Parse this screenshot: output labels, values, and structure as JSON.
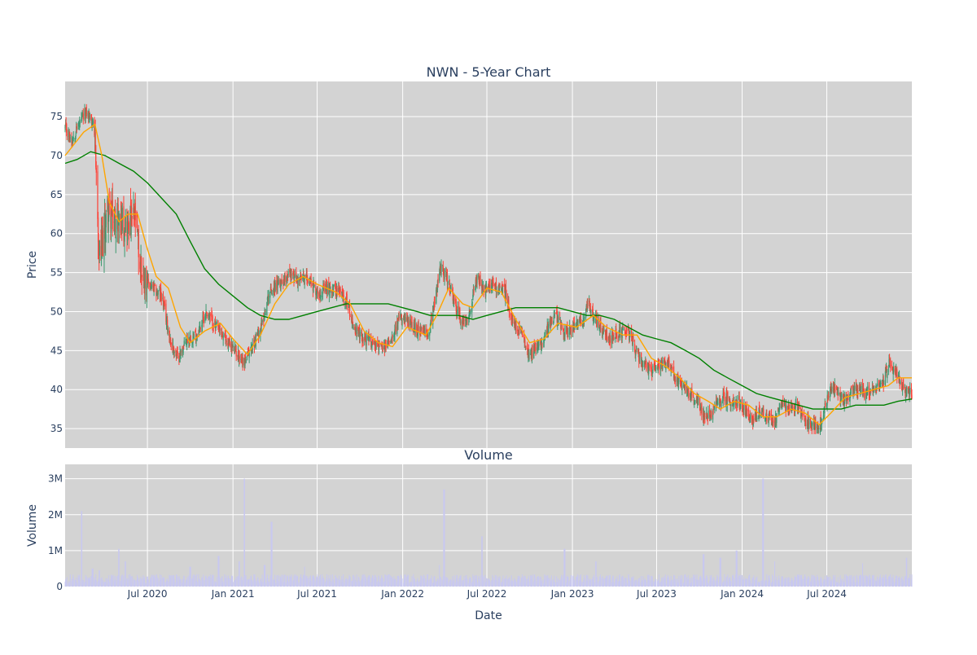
{
  "chart_data": [
    {
      "type": "candlestick",
      "title": "NWN - 5-Year Chart",
      "xlabel": "",
      "ylabel": "Price",
      "ylim": [
        32.5,
        79.5
      ],
      "yticks": [
        35,
        40,
        45,
        50,
        55,
        60,
        65,
        70,
        75
      ],
      "x_range": [
        "2020-01-06",
        "2024-12-31"
      ],
      "xticks": [
        "2020-07-01",
        "2021-01-01",
        "2021-07-01",
        "2022-01-01",
        "2022-07-01",
        "2023-01-01",
        "2023-07-01",
        "2024-01-01",
        "2024-07-01"
      ],
      "grid": true,
      "up_color": "#3D9970",
      "down_color": "#FF4136",
      "close_anchors": [
        [
          "2020-01-06",
          73.5
        ],
        [
          "2020-01-20",
          72.0
        ],
        [
          "2020-02-05",
          74.0
        ],
        [
          "2020-02-20",
          75.5
        ],
        [
          "2020-03-05",
          74.5
        ],
        [
          "2020-03-12",
          70.0
        ],
        [
          "2020-03-18",
          57.0
        ],
        [
          "2020-03-25",
          58.0
        ],
        [
          "2020-04-06",
          63.0
        ],
        [
          "2020-04-20",
          61.5
        ],
        [
          "2020-05-05",
          62.0
        ],
        [
          "2020-05-20",
          61.0
        ],
        [
          "2020-06-05",
          62.0
        ],
        [
          "2020-06-15",
          56.0
        ],
        [
          "2020-06-25",
          54.5
        ],
        [
          "2020-07-10",
          53.0
        ],
        [
          "2020-08-01",
          52.0
        ],
        [
          "2020-08-20",
          46.0
        ],
        [
          "2020-09-05",
          44.0
        ],
        [
          "2020-09-25",
          46.5
        ],
        [
          "2020-10-15",
          47.0
        ],
        [
          "2020-11-05",
          50.0
        ],
        [
          "2020-11-25",
          48.0
        ],
        [
          "2020-12-15",
          46.5
        ],
        [
          "2021-01-05",
          45.0
        ],
        [
          "2021-01-25",
          43.5
        ],
        [
          "2021-02-15",
          46.0
        ],
        [
          "2021-03-05",
          48.5
        ],
        [
          "2021-03-20",
          52.5
        ],
        [
          "2021-04-10",
          53.5
        ],
        [
          "2021-05-01",
          55.0
        ],
        [
          "2021-05-20",
          54.0
        ],
        [
          "2021-06-10",
          54.5
        ],
        [
          "2021-07-01",
          52.5
        ],
        [
          "2021-08-01",
          53.0
        ],
        [
          "2021-08-20",
          52.5
        ],
        [
          "2021-09-05",
          51.0
        ],
        [
          "2021-09-20",
          47.5
        ],
        [
          "2021-10-10",
          46.5
        ],
        [
          "2021-11-01",
          46.0
        ],
        [
          "2021-11-20",
          45.0
        ],
        [
          "2021-12-05",
          46.5
        ],
        [
          "2021-12-25",
          49.0
        ],
        [
          "2022-01-15",
          48.5
        ],
        [
          "2022-02-05",
          47.5
        ],
        [
          "2022-02-25",
          47.0
        ],
        [
          "2022-03-12",
          52.0
        ],
        [
          "2022-03-25",
          56.0
        ],
        [
          "2022-04-10",
          53.5
        ],
        [
          "2022-04-25",
          50.5
        ],
        [
          "2022-05-10",
          48.5
        ],
        [
          "2022-05-25",
          50.0
        ],
        [
          "2022-06-10",
          54.5
        ],
        [
          "2022-06-25",
          52.5
        ],
        [
          "2022-07-10",
          53.5
        ],
        [
          "2022-07-25",
          53.0
        ],
        [
          "2022-08-10",
          52.5
        ],
        [
          "2022-08-25",
          48.5
        ],
        [
          "2022-09-15",
          47.0
        ],
        [
          "2022-10-01",
          44.5
        ],
        [
          "2022-10-20",
          45.5
        ],
        [
          "2022-11-10",
          48.0
        ],
        [
          "2022-11-25",
          49.5
        ],
        [
          "2022-12-15",
          47.5
        ],
        [
          "2023-01-05",
          48.0
        ],
        [
          "2023-01-25",
          49.0
        ],
        [
          "2023-02-05",
          51.0
        ],
        [
          "2023-02-20",
          49.0
        ],
        [
          "2023-03-05",
          47.5
        ],
        [
          "2023-03-20",
          46.5
        ],
        [
          "2023-04-05",
          47.0
        ],
        [
          "2023-04-20",
          47.5
        ],
        [
          "2023-05-05",
          47.0
        ],
        [
          "2023-05-20",
          44.5
        ],
        [
          "2023-06-05",
          43.0
        ],
        [
          "2023-06-25",
          42.5
        ],
        [
          "2023-07-10",
          43.0
        ],
        [
          "2023-07-25",
          43.5
        ],
        [
          "2023-08-10",
          41.5
        ],
        [
          "2023-08-25",
          40.5
        ],
        [
          "2023-09-10",
          39.5
        ],
        [
          "2023-09-25",
          38.5
        ],
        [
          "2023-10-10",
          37.0
        ],
        [
          "2023-10-25",
          36.5
        ],
        [
          "2023-11-10",
          38.5
        ],
        [
          "2023-11-25",
          39.0
        ],
        [
          "2023-12-10",
          38.5
        ],
        [
          "2023-12-25",
          38.5
        ],
        [
          "2024-01-10",
          37.0
        ],
        [
          "2024-01-25",
          36.0
        ],
        [
          "2024-02-10",
          37.5
        ],
        [
          "2024-02-25",
          36.5
        ],
        [
          "2024-03-10",
          36.0
        ],
        [
          "2024-03-25",
          38.0
        ],
        [
          "2024-04-10",
          37.5
        ],
        [
          "2024-04-25",
          38.0
        ],
        [
          "2024-05-10",
          36.5
        ],
        [
          "2024-05-25",
          35.5
        ],
        [
          "2024-06-10",
          35.5
        ],
        [
          "2024-06-20",
          36.0
        ],
        [
          "2024-07-05",
          39.5
        ],
        [
          "2024-07-20",
          40.0
        ],
        [
          "2024-08-05",
          38.5
        ],
        [
          "2024-08-20",
          39.5
        ],
        [
          "2024-09-05",
          40.0
        ],
        [
          "2024-09-20",
          39.5
        ],
        [
          "2024-10-05",
          40.0
        ],
        [
          "2024-10-20",
          40.5
        ],
        [
          "2024-11-01",
          41.0
        ],
        [
          "2024-11-12",
          43.5
        ],
        [
          "2024-11-25",
          42.5
        ],
        [
          "2024-12-10",
          40.0
        ],
        [
          "2024-12-31",
          39.5
        ]
      ],
      "ma_short": {
        "color": "#FFA500",
        "points": [
          [
            "2020-01-06",
            70.0
          ],
          [
            "2020-02-15",
            73.0
          ],
          [
            "2020-03-10",
            74.0
          ],
          [
            "2020-03-25",
            70.0
          ],
          [
            "2020-04-10",
            64.0
          ],
          [
            "2020-05-01",
            61.5
          ],
          [
            "2020-05-20",
            62.5
          ],
          [
            "2020-06-10",
            62.5
          ],
          [
            "2020-07-01",
            58.0
          ],
          [
            "2020-07-20",
            54.5
          ],
          [
            "2020-08-15",
            53.0
          ],
          [
            "2020-09-10",
            48.0
          ],
          [
            "2020-10-01",
            46.0
          ],
          [
            "2020-11-01",
            47.5
          ],
          [
            "2020-12-05",
            48.5
          ],
          [
            "2021-01-01",
            46.5
          ],
          [
            "2021-02-01",
            44.5
          ],
          [
            "2021-03-01",
            47.0
          ],
          [
            "2021-04-01",
            51.0
          ],
          [
            "2021-05-01",
            53.5
          ],
          [
            "2021-06-01",
            54.5
          ],
          [
            "2021-07-01",
            53.5
          ],
          [
            "2021-08-10",
            52.5
          ],
          [
            "2021-09-10",
            51.0
          ],
          [
            "2021-10-10",
            47.5
          ],
          [
            "2021-11-10",
            46.0
          ],
          [
            "2021-12-10",
            45.5
          ],
          [
            "2022-01-10",
            48.0
          ],
          [
            "2022-02-20",
            47.0
          ],
          [
            "2022-03-15",
            49.5
          ],
          [
            "2022-04-10",
            53.0
          ],
          [
            "2022-05-10",
            51.0
          ],
          [
            "2022-06-01",
            50.5
          ],
          [
            "2022-07-01",
            53.0
          ],
          [
            "2022-08-01",
            52.5
          ],
          [
            "2022-09-01",
            49.0
          ],
          [
            "2022-10-01",
            46.0
          ],
          [
            "2022-11-01",
            46.5
          ],
          [
            "2022-12-01",
            48.5
          ],
          [
            "2023-01-10",
            48.0
          ],
          [
            "2023-02-15",
            49.5
          ],
          [
            "2023-03-15",
            48.0
          ],
          [
            "2023-04-20",
            47.0
          ],
          [
            "2023-05-20",
            47.0
          ],
          [
            "2023-06-20",
            44.0
          ],
          [
            "2023-07-20",
            43.0
          ],
          [
            "2023-08-20",
            41.5
          ],
          [
            "2023-09-20",
            39.5
          ],
          [
            "2023-10-20",
            38.5
          ],
          [
            "2023-11-15",
            37.5
          ],
          [
            "2023-12-15",
            38.5
          ],
          [
            "2024-01-15",
            38.0
          ],
          [
            "2024-02-15",
            36.5
          ],
          [
            "2024-03-15",
            36.5
          ],
          [
            "2024-04-15",
            37.5
          ],
          [
            "2024-05-15",
            37.0
          ],
          [
            "2024-06-15",
            35.5
          ],
          [
            "2024-07-10",
            37.0
          ],
          [
            "2024-08-10",
            39.0
          ],
          [
            "2024-09-10",
            39.5
          ],
          [
            "2024-10-10",
            40.0
          ],
          [
            "2024-11-10",
            40.5
          ],
          [
            "2024-12-01",
            41.5
          ],
          [
            "2024-12-31",
            41.5
          ]
        ]
      },
      "ma_long": {
        "color": "#008000",
        "points": [
          [
            "2020-01-06",
            69.0
          ],
          [
            "2020-02-01",
            69.5
          ],
          [
            "2020-03-01",
            70.5
          ],
          [
            "2020-04-01",
            70.0
          ],
          [
            "2020-05-01",
            69.0
          ],
          [
            "2020-06-01",
            68.0
          ],
          [
            "2020-07-01",
            66.5
          ],
          [
            "2020-08-01",
            64.5
          ],
          [
            "2020-09-01",
            62.5
          ],
          [
            "2020-10-01",
            59.0
          ],
          [
            "2020-11-01",
            55.5
          ],
          [
            "2020-12-01",
            53.5
          ],
          [
            "2021-01-01",
            52.0
          ],
          [
            "2021-02-01",
            50.5
          ],
          [
            "2021-03-01",
            49.5
          ],
          [
            "2021-04-01",
            49.0
          ],
          [
            "2021-05-01",
            49.0
          ],
          [
            "2021-06-01",
            49.5
          ],
          [
            "2021-07-01",
            50.0
          ],
          [
            "2021-08-01",
            50.5
          ],
          [
            "2021-09-01",
            51.0
          ],
          [
            "2021-10-01",
            51.0
          ],
          [
            "2021-11-01",
            51.0
          ],
          [
            "2021-12-01",
            51.0
          ],
          [
            "2022-01-01",
            50.5
          ],
          [
            "2022-02-01",
            50.0
          ],
          [
            "2022-03-01",
            49.5
          ],
          [
            "2022-04-01",
            49.5
          ],
          [
            "2022-05-01",
            49.5
          ],
          [
            "2022-06-01",
            49.0
          ],
          [
            "2022-07-01",
            49.5
          ],
          [
            "2022-08-01",
            50.0
          ],
          [
            "2022-09-01",
            50.5
          ],
          [
            "2022-10-01",
            50.5
          ],
          [
            "2022-11-01",
            50.5
          ],
          [
            "2022-12-01",
            50.5
          ],
          [
            "2023-01-01",
            50.0
          ],
          [
            "2023-02-01",
            49.5
          ],
          [
            "2023-03-01",
            49.5
          ],
          [
            "2023-04-01",
            49.0
          ],
          [
            "2023-05-01",
            48.0
          ],
          [
            "2023-06-01",
            47.0
          ],
          [
            "2023-07-01",
            46.5
          ],
          [
            "2023-08-01",
            46.0
          ],
          [
            "2023-09-01",
            45.0
          ],
          [
            "2023-10-01",
            44.0
          ],
          [
            "2023-11-01",
            42.5
          ],
          [
            "2023-12-01",
            41.5
          ],
          [
            "2024-01-01",
            40.5
          ],
          [
            "2024-02-01",
            39.5
          ],
          [
            "2024-03-01",
            39.0
          ],
          [
            "2024-04-01",
            38.5
          ],
          [
            "2024-05-01",
            38.0
          ],
          [
            "2024-06-01",
            37.5
          ],
          [
            "2024-07-01",
            37.5
          ],
          [
            "2024-08-01",
            37.5
          ],
          [
            "2024-09-01",
            38.0
          ],
          [
            "2024-10-01",
            38.0
          ],
          [
            "2024-11-01",
            38.0
          ],
          [
            "2024-12-01",
            38.5
          ],
          [
            "2024-12-31",
            38.8
          ]
        ]
      }
    },
    {
      "type": "bar",
      "title": "Volume",
      "xlabel": "Date",
      "ylabel": "Volume",
      "ylim": [
        0,
        3400000
      ],
      "yticks": [
        0,
        1000000,
        2000000,
        3000000
      ],
      "ytick_labels": [
        "0",
        "1M",
        "2M",
        "3M"
      ],
      "xticks": [
        "2020-07-01",
        "2021-01-01",
        "2021-07-01",
        "2022-01-01",
        "2022-07-01",
        "2023-01-01",
        "2023-07-01",
        "2024-01-01",
        "2024-07-01"
      ],
      "xtick_labels": [
        "Jul 2020",
        "Jan 2021",
        "Jul 2021",
        "Jan 2022",
        "Jul 2022",
        "Jan 2023",
        "Jul 2023",
        "Jan 2024",
        "Jul 2024"
      ],
      "grid": true,
      "bar_color": "#c8c8f0",
      "baseline": 230000,
      "spikes": [
        [
          "2020-02-10",
          2100000
        ],
        [
          "2020-03-05",
          500000
        ],
        [
          "2020-03-20",
          450000
        ],
        [
          "2020-05-01",
          1050000
        ],
        [
          "2020-05-15",
          700000
        ],
        [
          "2020-10-01",
          550000
        ],
        [
          "2020-12-01",
          850000
        ],
        [
          "2021-01-15",
          700000
        ],
        [
          "2021-01-25",
          3000000
        ],
        [
          "2021-03-10",
          600000
        ],
        [
          "2021-03-25",
          1800000
        ],
        [
          "2021-06-05",
          550000
        ],
        [
          "2022-03-20",
          600000
        ],
        [
          "2022-03-31",
          2700000
        ],
        [
          "2022-06-20",
          1400000
        ],
        [
          "2022-12-15",
          1050000
        ],
        [
          "2023-02-20",
          700000
        ],
        [
          "2023-10-10",
          900000
        ],
        [
          "2023-11-15",
          800000
        ],
        [
          "2023-12-20",
          1000000
        ],
        [
          "2024-02-15",
          3000000
        ],
        [
          "2024-03-10",
          700000
        ],
        [
          "2024-09-15",
          650000
        ],
        [
          "2024-12-20",
          800000
        ]
      ]
    }
  ]
}
